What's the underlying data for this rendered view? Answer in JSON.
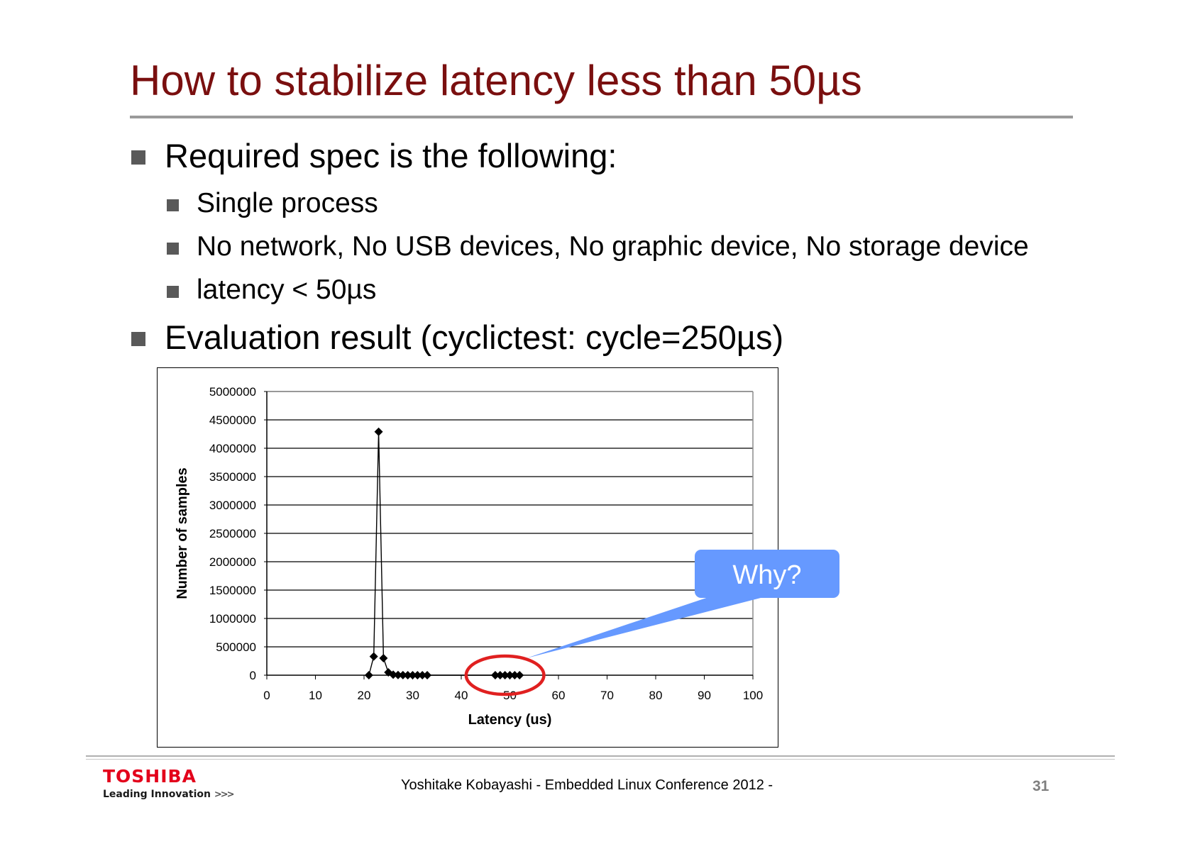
{
  "slide": {
    "title": "How to stabilize latency less than 50µs",
    "bullets": {
      "spec": "Required spec is the following:",
      "spec_items": [
        "Single process",
        "No network, No USB devices, No graphic device, No storage device",
        "latency <  50µs"
      ],
      "evaluation": "Evaluation result (cyclictest:  cycle=250µs)"
    },
    "callout": "Why?"
  },
  "chart_data": {
    "type": "line",
    "title": "",
    "xlabel": "Latency (us)",
    "ylabel": "Number of samples",
    "xlim": [
      0,
      100
    ],
    "ylim": [
      0,
      5000000
    ],
    "xticks": [
      0,
      10,
      20,
      30,
      40,
      50,
      60,
      70,
      80,
      90,
      100
    ],
    "yticks": [
      0,
      500000,
      1000000,
      1500000,
      2000000,
      2500000,
      3000000,
      3500000,
      4000000,
      4500000,
      5000000
    ],
    "grid": "horizontal",
    "marker": "diamond",
    "series": [
      {
        "x": [
          21,
          22,
          23,
          24,
          25,
          26,
          27,
          28,
          29,
          30,
          31,
          32,
          33,
          47,
          48,
          49,
          50,
          51,
          52
        ],
        "values": [
          0,
          330000,
          4290000,
          300000,
          50000,
          10000,
          3000,
          1000,
          500,
          300,
          200,
          100,
          50,
          3,
          2,
          2,
          1,
          1,
          1
        ]
      }
    ],
    "annotation": {
      "highlight_x_range": [
        41,
        57
      ],
      "marker_color": "#e02020"
    }
  },
  "footer": {
    "brand_name": "TOSHIBA",
    "brand_tagline": "Leading Innovation",
    "brand_chevrons": ">>>",
    "presenter_line": "Yoshitake Kobayashi  - Embedded Linux Conference 2012 -",
    "page_number": "31"
  },
  "colors": {
    "title": "#7a0f0f",
    "brand": "#e3001b",
    "callout": "#6699ff",
    "highlight": "#e02020"
  }
}
